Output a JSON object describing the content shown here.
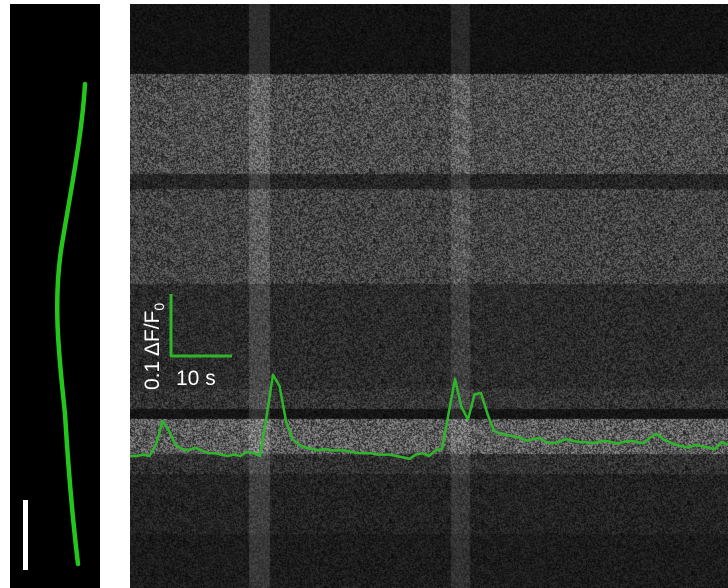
{
  "scalebar": {
    "amplitude_text": "0.1 ΔF/F",
    "amplitude_subscript": "0",
    "time_text": "10 s"
  },
  "colors": {
    "trace": "#2fb52a",
    "cell": "#24c61c",
    "scale": "#2fb52a",
    "background": "#000000"
  },
  "trace": {
    "values": [
      0.0,
      0.0,
      0.01,
      0.0,
      0.08,
      0.25,
      0.18,
      0.08,
      0.05,
      0.04,
      0.06,
      0.04,
      0.02,
      0.02,
      0.01,
      0.0,
      0.01,
      0.0,
      0.03,
      0.02,
      0.0,
      0.28,
      0.58,
      0.5,
      0.25,
      0.12,
      0.08,
      0.06,
      0.05,
      0.04,
      0.05,
      0.04,
      0.04,
      0.04,
      0.03,
      0.02,
      0.02,
      0.02,
      0.01,
      0.01,
      0.01,
      0.0,
      -0.01,
      -0.02,
      0.01,
      0.02,
      0.0,
      0.04,
      0.05,
      0.3,
      0.55,
      0.35,
      0.26,
      0.44,
      0.45,
      0.3,
      0.18,
      0.16,
      0.15,
      0.14,
      0.13,
      0.11,
      0.12,
      0.13,
      0.1,
      0.09,
      0.1,
      0.12,
      0.11,
      0.1,
      0.1,
      0.09,
      0.1,
      0.11,
      0.1,
      0.09,
      0.1,
      0.11,
      0.1,
      0.09,
      0.13,
      0.16,
      0.12,
      0.1,
      0.08,
      0.07,
      0.06,
      0.08,
      0.07,
      0.06,
      0.05,
      0.1,
      0.08
    ]
  }
}
